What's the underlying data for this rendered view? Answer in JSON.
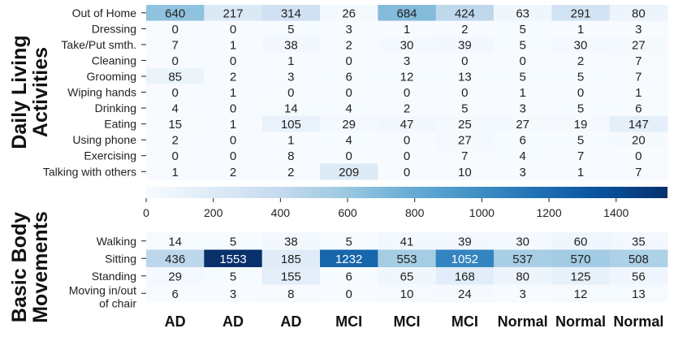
{
  "chart_data": [
    {
      "type": "heatmap",
      "group_label": [
        "Daily Living",
        "Activities"
      ],
      "rows": [
        "Out of Home",
        "Dressing",
        "Take/Put smth.",
        "Cleaning",
        "Grooming",
        "Wiping hands",
        "Drinking",
        "Eating",
        "Using phone",
        "Exercising",
        "Talking with others"
      ],
      "columns": [
        "AD",
        "AD",
        "AD",
        "MCI",
        "MCI",
        "MCI",
        "Normal",
        "Normal",
        "Normal"
      ],
      "values": [
        [
          640,
          217,
          314,
          26,
          684,
          424,
          63,
          291,
          80
        ],
        [
          0,
          0,
          5,
          3,
          1,
          2,
          5,
          1,
          3
        ],
        [
          7,
          1,
          38,
          2,
          30,
          39,
          5,
          30,
          27
        ],
        [
          0,
          0,
          1,
          0,
          3,
          0,
          0,
          2,
          7
        ],
        [
          85,
          2,
          3,
          6,
          12,
          13,
          5,
          5,
          7
        ],
        [
          0,
          1,
          0,
          0,
          0,
          0,
          1,
          0,
          1
        ],
        [
          4,
          0,
          14,
          4,
          2,
          5,
          3,
          5,
          6
        ],
        [
          15,
          1,
          105,
          29,
          47,
          25,
          27,
          19,
          147
        ],
        [
          2,
          0,
          1,
          4,
          0,
          27,
          6,
          5,
          20
        ],
        [
          0,
          0,
          8,
          0,
          0,
          7,
          4,
          7,
          0
        ],
        [
          1,
          2,
          2,
          209,
          0,
          10,
          3,
          1,
          7
        ]
      ]
    },
    {
      "type": "heatmap",
      "group_label": [
        "Basic Body",
        "Movements"
      ],
      "rows": [
        "Walking",
        "Sitting",
        "Standing",
        [
          "Moving in/out",
          "of chair"
        ]
      ],
      "columns": [
        "AD",
        "AD",
        "AD",
        "MCI",
        "MCI",
        "MCI",
        "Normal",
        "Normal",
        "Normal"
      ],
      "values": [
        [
          14,
          5,
          38,
          5,
          41,
          39,
          30,
          60,
          35
        ],
        [
          436,
          1553,
          185,
          1232,
          553,
          1052,
          537,
          570,
          508
        ],
        [
          29,
          5,
          155,
          6,
          65,
          168,
          80,
          125,
          56
        ],
        [
          6,
          3,
          8,
          0,
          10,
          24,
          3,
          12,
          13
        ]
      ]
    }
  ],
  "colorbar": {
    "vmin": 0,
    "vmax": 1553,
    "ticks": [
      0,
      200,
      400,
      600,
      800,
      1000,
      1200,
      1400
    ],
    "colormap": "Blues",
    "colors": [
      "#f7fbff",
      "#deebf7",
      "#c6dbef",
      "#9ecae1",
      "#6baed6",
      "#4292c6",
      "#2171b5",
      "#08519c",
      "#08306b"
    ]
  }
}
